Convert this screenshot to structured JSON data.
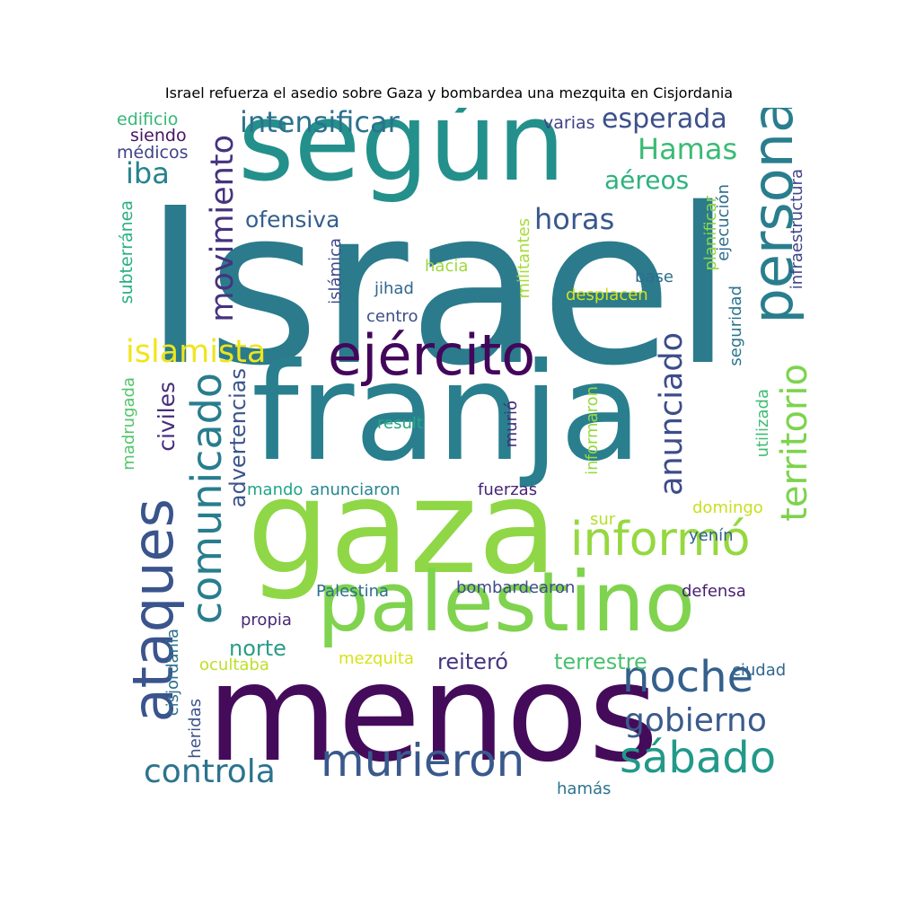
{
  "chart_data": {
    "type": "wordcloud",
    "title": "Israel refuerza el asedio sobre Gaza y bombardea una mezquita en Cisjordania",
    "words": [
      {
        "text": "Israel",
        "color": "#2b7b8c"
      },
      {
        "text": "menos",
        "color": "#450b5b"
      },
      {
        "text": "franja",
        "color": "#297f8e"
      },
      {
        "text": "gaza",
        "color": "#8fd746"
      },
      {
        "text": "según",
        "color": "#24908c"
      },
      {
        "text": "palestino",
        "color": "#7fd34e"
      },
      {
        "text": "ejército",
        "color": "#43065a"
      },
      {
        "text": "persona",
        "color": "#297e8d"
      },
      {
        "text": "ataques",
        "color": "#3a548c"
      },
      {
        "text": "informó",
        "color": "#95d840"
      },
      {
        "text": "murieron",
        "color": "#39598c"
      },
      {
        "text": "noche",
        "color": "#34608d"
      },
      {
        "text": "sábado",
        "color": "#22998a"
      },
      {
        "text": "comunicado",
        "color": "#287d8e"
      },
      {
        "text": "territorio",
        "color": "#7ed34e"
      },
      {
        "text": "gobierno",
        "color": "#3b5b8c"
      },
      {
        "text": "controla",
        "color": "#2c738e"
      },
      {
        "text": "anunciado",
        "color": "#3d4c8a"
      },
      {
        "text": "movimiento",
        "color": "#46337e"
      },
      {
        "text": "islamista",
        "color": "#efe51c"
      },
      {
        "text": "intensificar",
        "color": "#2c728e"
      },
      {
        "text": "Hamas",
        "color": "#3bbb75"
      },
      {
        "text": "horas",
        "color": "#38588c"
      },
      {
        "text": "esperada",
        "color": "#3c508b"
      },
      {
        "text": "iba",
        "color": "#25848d"
      },
      {
        "text": "aéreos",
        "color": "#2db27d"
      },
      {
        "text": "ofensiva",
        "color": "#355f8d"
      },
      {
        "text": "civiles",
        "color": "#472e7c"
      },
      {
        "text": "advertencias",
        "color": "#3a548c"
      },
      {
        "text": "reiteró",
        "color": "#453581"
      },
      {
        "text": "terrestre",
        "color": "#48c16e"
      },
      {
        "text": "norte",
        "color": "#2c9c89"
      },
      {
        "text": "edificio",
        "color": "#35b779"
      },
      {
        "text": "siendo",
        "color": "#471365"
      },
      {
        "text": "médicos",
        "color": "#404387"
      },
      {
        "text": "varias",
        "color": "#414387"
      },
      {
        "text": "subterránea",
        "color": "#2ab07f"
      },
      {
        "text": "islámica",
        "color": "#3f4788"
      },
      {
        "text": "hacia",
        "color": "#9cd93b"
      },
      {
        "text": "jihad",
        "color": "#31668e"
      },
      {
        "text": "centro",
        "color": "#3c4f8a"
      },
      {
        "text": "militantes",
        "color": "#a5db36"
      },
      {
        "text": "base",
        "color": "#2e6e8e"
      },
      {
        "text": "desplacen",
        "color": "#d2e21b"
      },
      {
        "text": "planificar",
        "color": "#8bd646"
      },
      {
        "text": "ejecución",
        "color": "#2f6c8e"
      },
      {
        "text": "seguridad",
        "color": "#2b758e"
      },
      {
        "text": "infraestructura",
        "color": "#404688"
      },
      {
        "text": "madrugada",
        "color": "#52c569"
      },
      {
        "text": "result",
        "color": "#22a884"
      },
      {
        "text": "murió",
        "color": "#472c7a"
      },
      {
        "text": "informaron",
        "color": "#95d840"
      },
      {
        "text": "utilizada",
        "color": "#3fbc73"
      },
      {
        "text": "mando",
        "color": "#20a486"
      },
      {
        "text": "anunciaron",
        "color": "#25858e"
      },
      {
        "text": "fuerzas",
        "color": "#482475"
      },
      {
        "text": "domingo",
        "color": "#c8e020"
      },
      {
        "text": "sur",
        "color": "#b5de2b"
      },
      {
        "text": "yenín",
        "color": "#34608d"
      },
      {
        "text": "Palestina",
        "color": "#2e6f8e"
      },
      {
        "text": "bombardearon",
        "color": "#3e4a89"
      },
      {
        "text": "defensa",
        "color": "#481f70"
      },
      {
        "text": "propia",
        "color": "#482878"
      },
      {
        "text": "cisjordania",
        "color": "#2d718e"
      },
      {
        "text": "heridas",
        "color": "#3b528b"
      },
      {
        "text": "ocultaba",
        "color": "#bddf26"
      },
      {
        "text": "mezquita",
        "color": "#d8e219"
      },
      {
        "text": "ciudad",
        "color": "#31688e"
      },
      {
        "text": "hamás",
        "color": "#2c738e"
      }
    ]
  }
}
